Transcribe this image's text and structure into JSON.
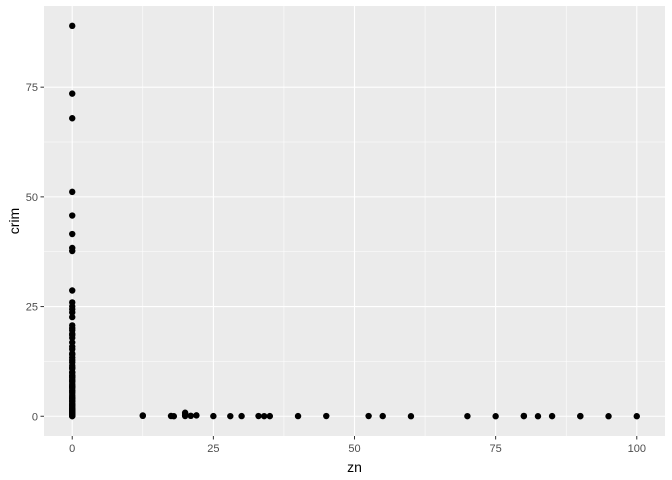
{
  "chart_data": {
    "type": "scatter",
    "title": "",
    "xlabel": "zn",
    "ylabel": "crim",
    "xlim": [
      -5,
      105
    ],
    "ylim": [
      -4.5,
      93.5
    ],
    "x_ticks": [
      0,
      25,
      50,
      75,
      100
    ],
    "x_tick_labels": [
      "0",
      "25",
      "50",
      "75",
      "100"
    ],
    "y_ticks": [
      0,
      25,
      50,
      75
    ],
    "y_tick_labels": [
      "0",
      "25",
      "50",
      "75"
    ],
    "grid": true,
    "legend": "none",
    "colors": {
      "panel": "#ebebeb",
      "grid": "#ffffff",
      "point": "#000000"
    },
    "points": [
      {
        "x": 0,
        "y": 88.98
      },
      {
        "x": 0,
        "y": 73.53
      },
      {
        "x": 0,
        "y": 67.92
      },
      {
        "x": 0,
        "y": 51.14
      },
      {
        "x": 0,
        "y": 45.75
      },
      {
        "x": 0,
        "y": 41.53
      },
      {
        "x": 0,
        "y": 38.35
      },
      {
        "x": 0,
        "y": 37.66
      },
      {
        "x": 0,
        "y": 28.66
      },
      {
        "x": 0,
        "y": 25.94
      },
      {
        "x": 0,
        "y": 25.05
      },
      {
        "x": 0,
        "y": 24.39
      },
      {
        "x": 0,
        "y": 23.65
      },
      {
        "x": 0,
        "y": 22.6
      },
      {
        "x": 0,
        "y": 20.7
      },
      {
        "x": 0,
        "y": 20.08
      },
      {
        "x": 0,
        "y": 19.6
      },
      {
        "x": 0,
        "y": 18.81
      },
      {
        "x": 0,
        "y": 18.5
      },
      {
        "x": 0,
        "y": 17.87
      },
      {
        "x": 0,
        "y": 16.81
      },
      {
        "x": 0,
        "y": 15.87
      },
      {
        "x": 0,
        "y": 15.29
      },
      {
        "x": 0,
        "y": 14.33
      },
      {
        "x": 0,
        "y": 14.05
      },
      {
        "x": 0,
        "y": 13.36
      },
      {
        "x": 0,
        "y": 12.8
      },
      {
        "x": 0,
        "y": 12.25
      },
      {
        "x": 0,
        "y": 11.58
      },
      {
        "x": 0,
        "y": 11.1
      },
      {
        "x": 0,
        "y": 10.84
      },
      {
        "x": 0,
        "y": 10.06
      },
      {
        "x": 0,
        "y": 9.92
      },
      {
        "x": 0,
        "y": 9.34
      },
      {
        "x": 0,
        "y": 9.19
      },
      {
        "x": 0,
        "y": 8.98
      },
      {
        "x": 0,
        "y": 8.71
      },
      {
        "x": 0,
        "y": 8.27
      },
      {
        "x": 0,
        "y": 8.06
      },
      {
        "x": 0,
        "y": 7.84
      },
      {
        "x": 0,
        "y": 7.37
      },
      {
        "x": 0,
        "y": 7.05
      },
      {
        "x": 0,
        "y": 6.8
      },
      {
        "x": 0,
        "y": 6.65
      },
      {
        "x": 0,
        "y": 6.39
      },
      {
        "x": 0,
        "y": 5.87
      },
      {
        "x": 0,
        "y": 5.7
      },
      {
        "x": 0,
        "y": 5.29
      },
      {
        "x": 0,
        "y": 4.87
      },
      {
        "x": 0,
        "y": 4.55
      },
      {
        "x": 0,
        "y": 4.22
      },
      {
        "x": 0,
        "y": 4.1
      },
      {
        "x": 0,
        "y": 3.84
      },
      {
        "x": 0,
        "y": 3.47
      },
      {
        "x": 0,
        "y": 3.32
      },
      {
        "x": 0,
        "y": 2.92
      },
      {
        "x": 0,
        "y": 2.73
      },
      {
        "x": 0,
        "y": 2.45
      },
      {
        "x": 0,
        "y": 2.3
      },
      {
        "x": 0,
        "y": 2.01
      },
      {
        "x": 0,
        "y": 1.83
      },
      {
        "x": 0,
        "y": 1.62
      },
      {
        "x": 0,
        "y": 1.51
      },
      {
        "x": 0,
        "y": 1.35
      },
      {
        "x": 0,
        "y": 1.23
      },
      {
        "x": 0,
        "y": 1.13
      },
      {
        "x": 0,
        "y": 1.0
      },
      {
        "x": 0,
        "y": 0.88
      },
      {
        "x": 0,
        "y": 0.75
      },
      {
        "x": 0,
        "y": 0.63
      },
      {
        "x": 0,
        "y": 0.55
      },
      {
        "x": 0,
        "y": 0.44
      },
      {
        "x": 0,
        "y": 0.35
      },
      {
        "x": 0,
        "y": 0.25
      },
      {
        "x": 0,
        "y": 0.17
      },
      {
        "x": 0,
        "y": 0.1
      },
      {
        "x": 0,
        "y": 0.06
      },
      {
        "x": 0,
        "y": 0.03
      },
      {
        "x": 12.5,
        "y": 0.17
      },
      {
        "x": 12.5,
        "y": 0.09
      },
      {
        "x": 17.5,
        "y": 0.06
      },
      {
        "x": 18,
        "y": 0.01
      },
      {
        "x": 20,
        "y": 0.8
      },
      {
        "x": 20,
        "y": 0.54
      },
      {
        "x": 20,
        "y": 0.23
      },
      {
        "x": 20,
        "y": 0.05
      },
      {
        "x": 21,
        "y": 0.1
      },
      {
        "x": 22,
        "y": 0.2
      },
      {
        "x": 25,
        "y": 0.04
      },
      {
        "x": 28,
        "y": 0.02
      },
      {
        "x": 30,
        "y": 0.04
      },
      {
        "x": 33,
        "y": 0.05
      },
      {
        "x": 34,
        "y": 0.02
      },
      {
        "x": 35,
        "y": 0.03
      },
      {
        "x": 40,
        "y": 0.04
      },
      {
        "x": 45,
        "y": 0.05
      },
      {
        "x": 52.5,
        "y": 0.05
      },
      {
        "x": 55,
        "y": 0.04
      },
      {
        "x": 60,
        "y": 0.01
      },
      {
        "x": 70,
        "y": 0.02
      },
      {
        "x": 75,
        "y": 0.01
      },
      {
        "x": 80,
        "y": 0.08
      },
      {
        "x": 80,
        "y": 0.02
      },
      {
        "x": 82.5,
        "y": 0.01
      },
      {
        "x": 85,
        "y": 0.03
      },
      {
        "x": 90,
        "y": 0.04
      },
      {
        "x": 90,
        "y": 0.02
      },
      {
        "x": 95,
        "y": 0.01
      },
      {
        "x": 100,
        "y": 0.01
      }
    ]
  }
}
